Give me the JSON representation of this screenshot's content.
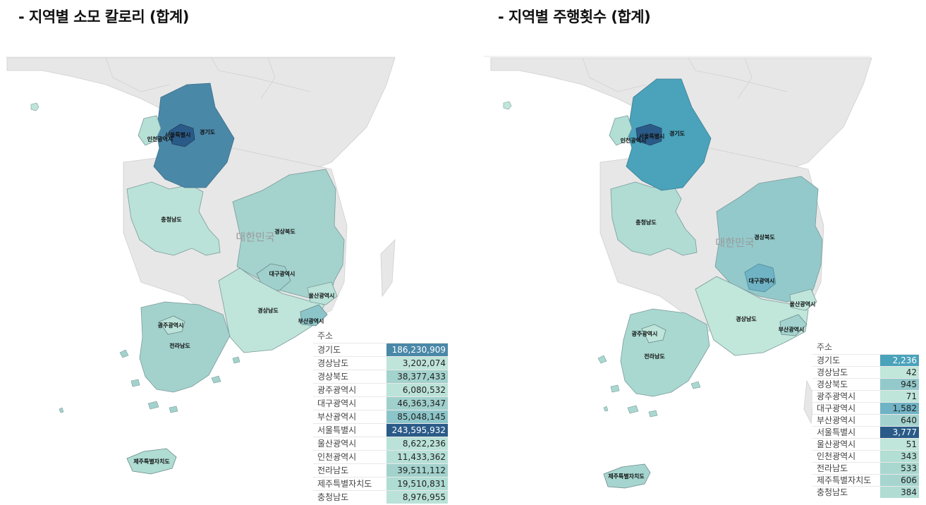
{
  "left": {
    "title": "- 지역별 소모 칼로리 (합계)",
    "map_label": "대한민국",
    "legend_header": "주소",
    "regions": [
      {
        "name": "경기도",
        "value": "186,230,909",
        "color": "#4a88a8",
        "text": "#ffffff"
      },
      {
        "name": "경상남도",
        "value": "3,202,074",
        "color": "#bfe4da",
        "text": "#222222"
      },
      {
        "name": "경상북도",
        "value": "38,377,433",
        "color": "#a4d2cd",
        "text": "#222222"
      },
      {
        "name": "광주광역시",
        "value": "6,080,532",
        "color": "#bce3d9",
        "text": "#222222"
      },
      {
        "name": "대구광역시",
        "value": "46,363,347",
        "color": "#a0d0cc",
        "text": "#222222"
      },
      {
        "name": "부산광역시",
        "value": "85,048,145",
        "color": "#8cc5c9",
        "text": "#222222"
      },
      {
        "name": "서울특별시",
        "value": "243,595,932",
        "color": "#2a5b88",
        "text": "#ffffff"
      },
      {
        "name": "울산광역시",
        "value": "8,622,236",
        "color": "#bae2d8",
        "text": "#222222"
      },
      {
        "name": "인천광역시",
        "value": "11,433,362",
        "color": "#b6e0d6",
        "text": "#222222"
      },
      {
        "name": "전라남도",
        "value": "39,511,112",
        "color": "#a3d2cd",
        "text": "#222222"
      },
      {
        "name": "제주특별자치도",
        "value": "19,510,831",
        "color": "#afdcd3",
        "text": "#222222"
      },
      {
        "name": "충청남도",
        "value": "8,976,955",
        "color": "#bae2d8",
        "text": "#222222"
      }
    ]
  },
  "right": {
    "title": "- 지역별 주행횟수 (합계)",
    "map_label": "대한민국",
    "legend_header": "주소",
    "regions": [
      {
        "name": "경기도",
        "value": "2,236",
        "color": "#4aa2bb",
        "text": "#ffffff"
      },
      {
        "name": "경상남도",
        "value": "42",
        "color": "#c1e6da",
        "text": "#222222"
      },
      {
        "name": "경상북도",
        "value": "945",
        "color": "#93c9cb",
        "text": "#222222"
      },
      {
        "name": "광주광역시",
        "value": "71",
        "color": "#bfe5da",
        "text": "#222222"
      },
      {
        "name": "대구광역시",
        "value": "1,582",
        "color": "#6fb3c5",
        "text": "#222222"
      },
      {
        "name": "부산광역시",
        "value": "640",
        "color": "#a4d3cf",
        "text": "#222222"
      },
      {
        "name": "서울특별시",
        "value": "3,777",
        "color": "#2a5b88",
        "text": "#ffffff"
      },
      {
        "name": "울산광역시",
        "value": "51",
        "color": "#c0e5da",
        "text": "#222222"
      },
      {
        "name": "인천광역시",
        "value": "343",
        "color": "#b2ded4",
        "text": "#222222"
      },
      {
        "name": "전라남도",
        "value": "533",
        "color": "#a9d8d0",
        "text": "#222222"
      },
      {
        "name": "제주특별자치도",
        "value": "606",
        "color": "#a6d5cf",
        "text": "#222222"
      },
      {
        "name": "충청남도",
        "value": "384",
        "color": "#b0dcd3",
        "text": "#222222"
      }
    ]
  }
}
